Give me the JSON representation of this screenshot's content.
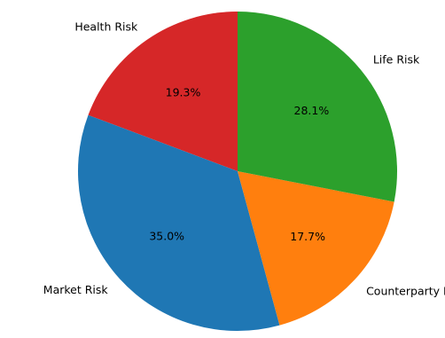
{
  "chart_data": {
    "type": "pie",
    "slices": [
      {
        "label": "Health Risk",
        "value": 19.3,
        "pct_label": "19.3%",
        "color": "#d62728"
      },
      {
        "label": "Market Risk",
        "value": 35.0,
        "pct_label": "35.0%",
        "color": "#1f77b4"
      },
      {
        "label": "Counterparty Default Risk",
        "value": 17.7,
        "pct_label": "17.7%",
        "color": "#ff7f0e"
      },
      {
        "label": "Life Risk",
        "value": 28.1,
        "pct_label": "28.1%",
        "color": "#2ca02c"
      }
    ],
    "start_angle_deg": 90,
    "direction": "counterclockwise",
    "legend": "none"
  }
}
